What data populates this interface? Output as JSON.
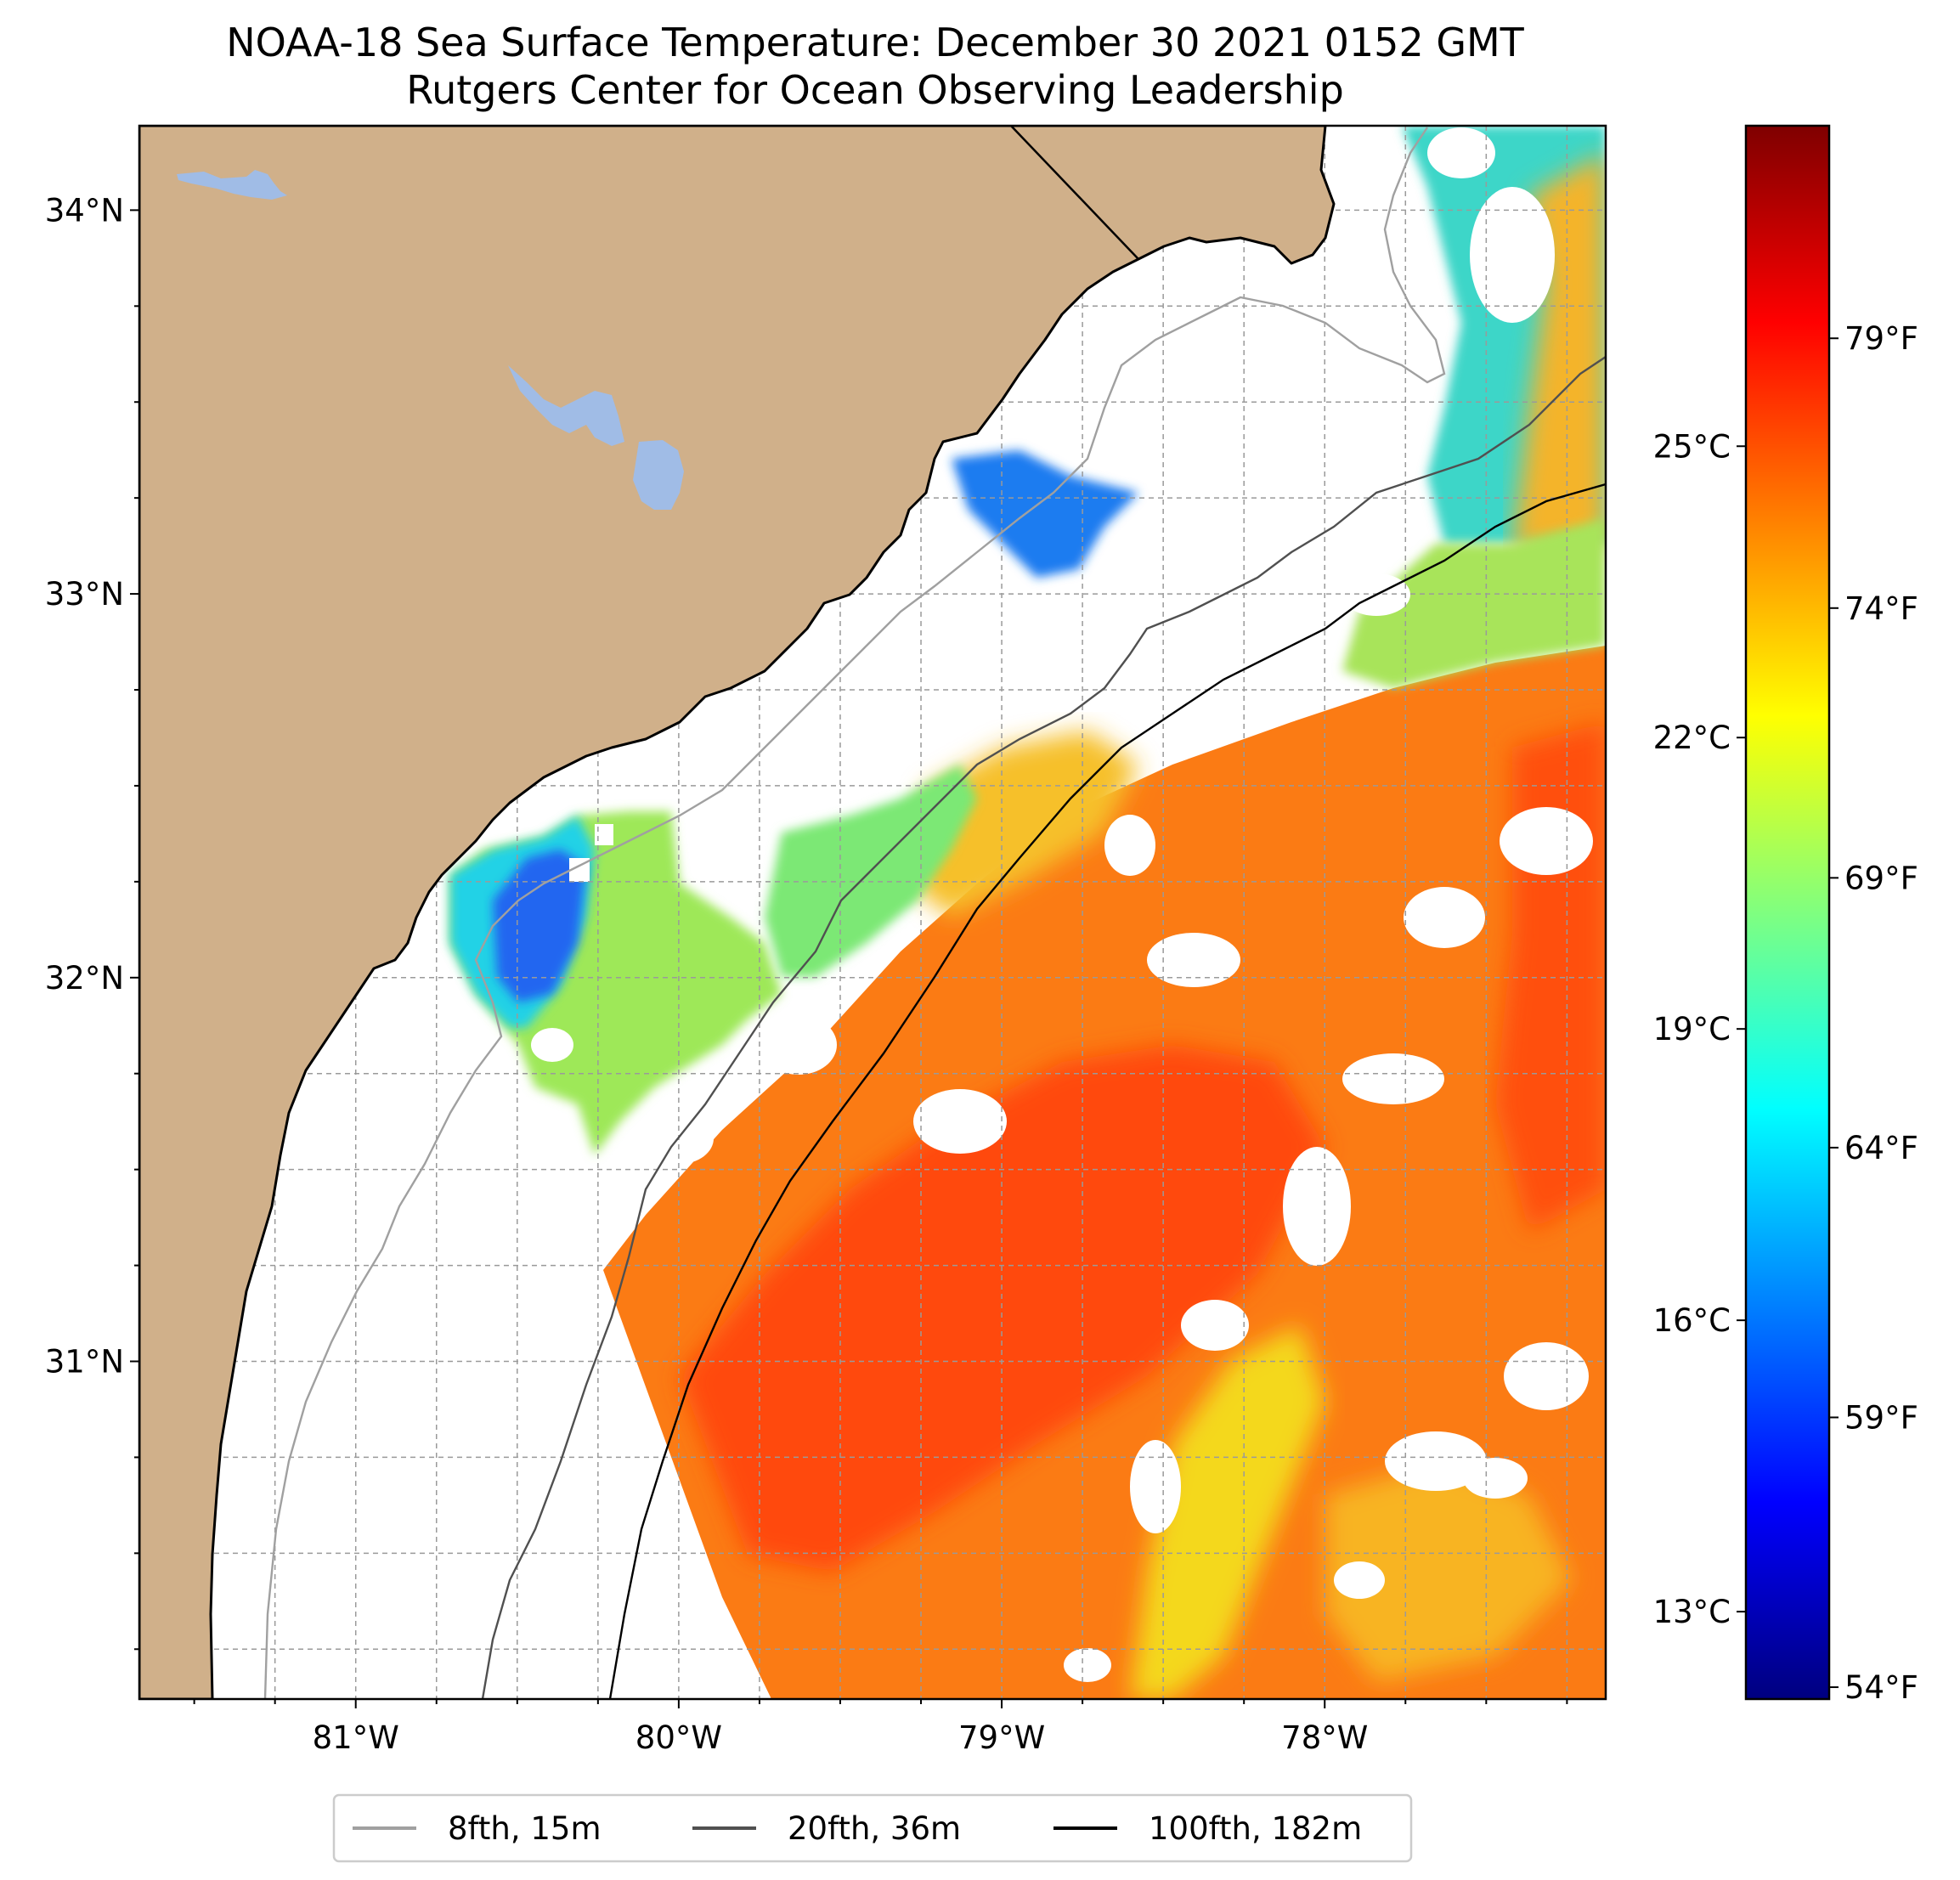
{
  "chart_data": {
    "type": "map",
    "title": "NOAA-18 Sea Surface Temperature: December 30 2021 0152 GMT",
    "subtitle": "Rutgers Center for Ocean Observing Leadership",
    "lon_range": [
      -81.67,
      -77.13
    ],
    "lat_range": [
      30.12,
      34.22
    ],
    "lon_ticks": [
      {
        "value": -81,
        "label": "81°W"
      },
      {
        "value": -80,
        "label": "80°W"
      },
      {
        "value": -79,
        "label": "79°W"
      },
      {
        "value": -78,
        "label": "78°W"
      }
    ],
    "lat_ticks": [
      {
        "value": 34,
        "label": "34°N"
      },
      {
        "value": 33,
        "label": "33°N"
      },
      {
        "value": 32,
        "label": "32°N"
      },
      {
        "value": 31,
        "label": "31°N"
      }
    ],
    "grid": true,
    "colorbar": {
      "colormap": "jet",
      "range_c": [
        12.1,
        28.3
      ],
      "celsius_ticks": [
        {
          "value": 13,
          "label": "13°C"
        },
        {
          "value": 16,
          "label": "16°C"
        },
        {
          "value": 19,
          "label": "19°C"
        },
        {
          "value": 22,
          "label": "22°C"
        },
        {
          "value": 25,
          "label": "25°C"
        }
      ],
      "fahrenheit_ticks": [
        {
          "value": 54,
          "label": "54°F"
        },
        {
          "value": 59,
          "label": "59°F"
        },
        {
          "value": 64,
          "label": "64°F"
        },
        {
          "value": 69,
          "label": "69°F"
        },
        {
          "value": 74,
          "label": "74°F"
        },
        {
          "value": 79,
          "label": "79°F"
        }
      ]
    },
    "legend": {
      "placement": "bottom-center",
      "entries": [
        {
          "label": "8fth, 15m",
          "color": "#a0a0a0"
        },
        {
          "label": "20fth, 36m",
          "color": "#505050"
        },
        {
          "label": "100fth, 182m",
          "color": "#000000"
        }
      ]
    }
  },
  "colors": {
    "land": "#d0b08a",
    "lake": "#a0bce6",
    "coast": "#000000",
    "grid": "#9a9a9a"
  }
}
